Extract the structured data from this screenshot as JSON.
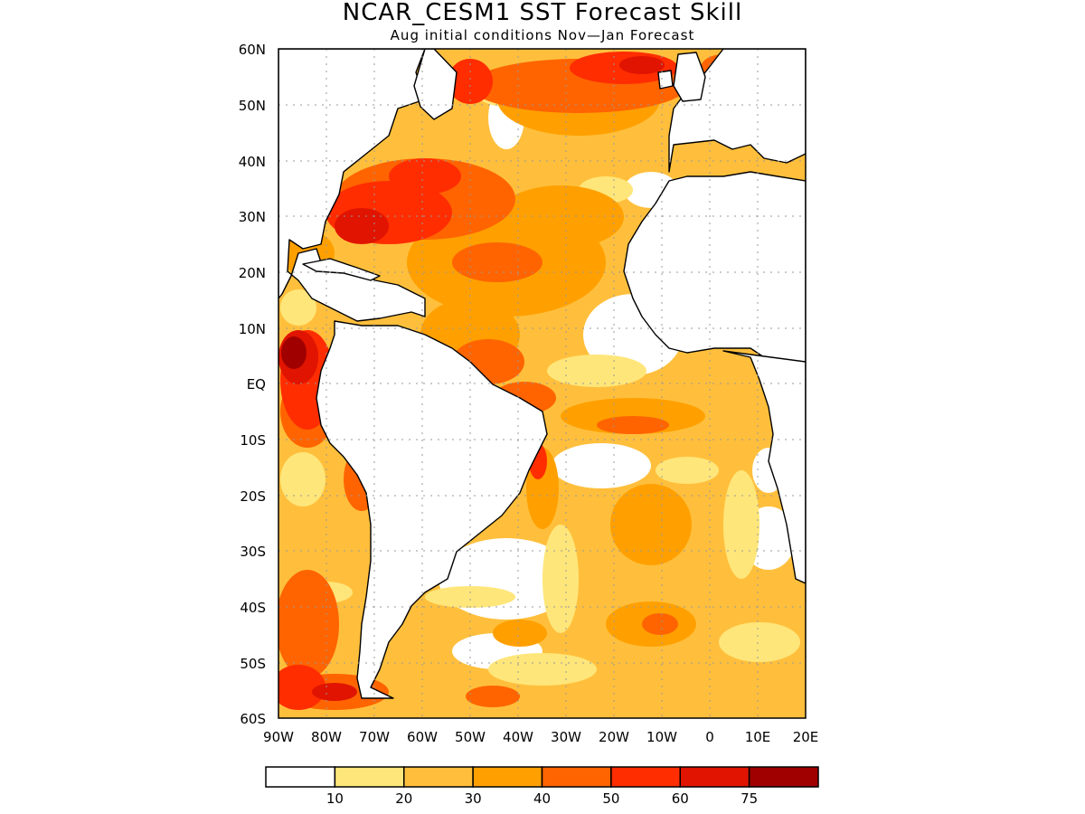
{
  "title": "NCAR_CESM1 SST Forecast Skill",
  "subtitle": "Aug initial conditions   Nov—Jan Forecast",
  "lat_labels": [
    "60N",
    "50N",
    "40N",
    "30N",
    "20N",
    "10N",
    "EQ",
    "10S",
    "20S",
    "30S",
    "40S",
    "50S",
    "60S"
  ],
  "lon_labels": [
    "90W",
    "80W",
    "70W",
    "60W",
    "50W",
    "40W",
    "30W",
    "20W",
    "10W",
    "0",
    "10E",
    "20E"
  ],
  "colorbar": {
    "colors": [
      "#ffffff",
      "#ffe67a",
      "#ffbf3c",
      "#ffa000",
      "#ff6400",
      "#ff2d00",
      "#e01400",
      "#a00000"
    ],
    "labels": [
      "10",
      "20",
      "30",
      "40",
      "50",
      "60",
      "75"
    ]
  },
  "colors": {
    "land": "#ffffff",
    "coast": "#000000",
    "grid": "#999999"
  }
}
